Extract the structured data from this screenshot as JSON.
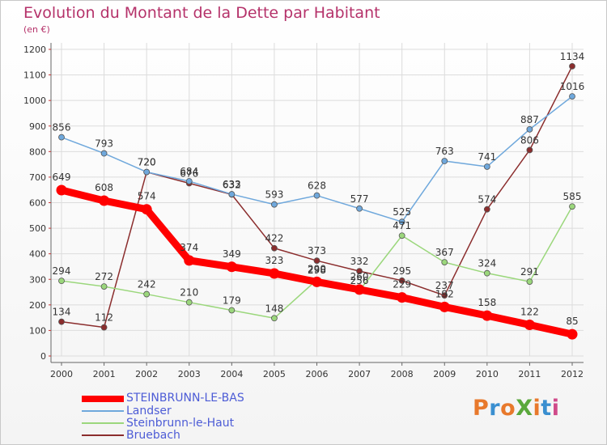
{
  "title": "Evolution du Montant de la Dette par Habitant",
  "subtitle": "(en €)",
  "logo": {
    "text": "ProXiti",
    "letters": [
      "P",
      "r",
      "o",
      "X",
      "i",
      "t",
      "i"
    ],
    "colors": [
      "#e8792c",
      "#3a8fd0",
      "#e8792c",
      "#5aa83c",
      "#e8792c",
      "#3a8fd0",
      "#d04a8a"
    ]
  },
  "chart_data": {
    "type": "line",
    "x": [
      2000,
      2001,
      2002,
      2003,
      2004,
      2005,
      2006,
      2007,
      2008,
      2009,
      2010,
      2011,
      2012
    ],
    "ylim": [
      0,
      1200
    ],
    "yticks": [
      0,
      100,
      200,
      300,
      400,
      500,
      600,
      700,
      800,
      900,
      1000,
      1100,
      1200
    ],
    "grid": true,
    "legend_position": "bottom-left",
    "series": [
      {
        "name": "STEINBRUNN-LE-BAS",
        "color": "#ff0000",
        "values": [
          649,
          608,
          574,
          374,
          349,
          323,
          290,
          260,
          229,
          192,
          158,
          122,
          85
        ],
        "labels": [
          "649",
          "608",
          "574",
          "374",
          "349",
          "323",
          "290",
          "260",
          "229",
          "192",
          "158",
          "122",
          "85"
        ]
      },
      {
        "name": "Landser",
        "color": "#6fa8dc",
        "values": [
          856,
          793,
          720,
          684,
          633,
          593,
          628,
          577,
          525,
          763,
          741,
          887,
          1016
        ],
        "labels": [
          "856",
          "793",
          "720",
          "684",
          "633",
          "593",
          "628",
          "577",
          "525",
          "763",
          "741",
          "887",
          "1016"
        ]
      },
      {
        "name": "Steinbrunn-le-Haut",
        "color": "#9bd77c",
        "values": [
          294,
          272,
          242,
          210,
          179,
          148,
          298,
          256,
          471,
          367,
          324,
          291,
          585
        ],
        "labels": [
          "294",
          "272",
          "242",
          "210",
          "179",
          "148",
          "298",
          "256",
          "471",
          "367",
          "324",
          "291",
          "585"
        ]
      },
      {
        "name": "Bruebach",
        "color": "#8b2d2d",
        "values": [
          134,
          112,
          720,
          676,
          632,
          422,
          373,
          332,
          295,
          237,
          574,
          806,
          1134
        ],
        "labels": [
          "134",
          "112",
          "720",
          "676",
          "632",
          "422",
          "373",
          "332",
          "295",
          "237",
          "574",
          "806",
          "1134"
        ]
      }
    ]
  }
}
